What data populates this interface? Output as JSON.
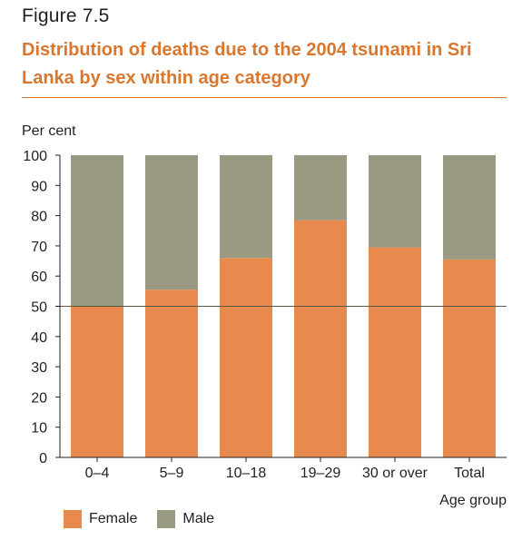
{
  "figure": {
    "label": "Figure 7.5",
    "title": "Distribution of deaths due to the 2004 tsunami in Sri Lanka by sex within age category"
  },
  "colors": {
    "female": "#e8894e",
    "male": "#9a9a82",
    "accent": "#d9772f",
    "axis": "#231f20"
  },
  "chart_data": {
    "type": "bar",
    "stacked": true,
    "title": "",
    "ylabel": "Per cent",
    "xlabel": "Age group",
    "categories": [
      "0–4",
      "5–9",
      "10–18",
      "19–29",
      "30 or over",
      "Total"
    ],
    "series": [
      {
        "name": "Female",
        "values": [
          50,
          55.5,
          66,
          78.5,
          69.5,
          65.5
        ]
      },
      {
        "name": "Male",
        "values": [
          50,
          44.5,
          34,
          21.5,
          30.5,
          34.5
        ]
      }
    ],
    "ylim": [
      0,
      100
    ],
    "yticks": [
      0,
      10,
      20,
      30,
      40,
      50,
      60,
      70,
      80,
      90,
      100
    ],
    "reference_line": 50,
    "grid": false,
    "legend": {
      "position": "bottom-left",
      "entries": [
        "Female",
        "Male"
      ]
    }
  }
}
